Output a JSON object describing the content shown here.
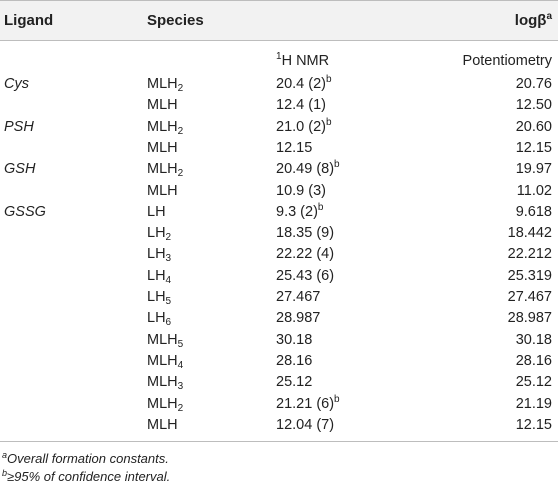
{
  "headers": {
    "ligand": "Ligand",
    "species": "Species",
    "logbeta": "logβ",
    "logbeta_sup": "a"
  },
  "subheaders": {
    "nmr_sup": "1",
    "nmr": "H NMR",
    "potentiometry": "Potentiometry"
  },
  "rows": [
    {
      "ligand": "Cys",
      "sp": "MLH",
      "sub": "2",
      "nmr": "20.4 (2)",
      "nmr_sup": "b",
      "pot": "20.76"
    },
    {
      "ligand": "",
      "sp": "MLH",
      "sub": "",
      "nmr": "12.4 (1)",
      "nmr_sup": "",
      "pot": "12.50"
    },
    {
      "ligand": "PSH",
      "sp": "MLH",
      "sub": "2",
      "nmr": "21.0 (2)",
      "nmr_sup": "b",
      "pot": "20.60"
    },
    {
      "ligand": "",
      "sp": "MLH",
      "sub": "",
      "nmr": "12.15",
      "nmr_sup": "",
      "pot": "12.15"
    },
    {
      "ligand": "GSH",
      "sp": "MLH",
      "sub": "2",
      "nmr": "20.49 (8)",
      "nmr_sup": "b",
      "pot": "19.97"
    },
    {
      "ligand": "",
      "sp": "MLH",
      "sub": "",
      "nmr": "10.9 (3)",
      "nmr_sup": "",
      "pot": "11.02"
    },
    {
      "ligand": "GSSG",
      "sp": "LH",
      "sub": "",
      "nmr": "9.3 (2)",
      "nmr_sup": "b",
      "pot": "9.618"
    },
    {
      "ligand": "",
      "sp": "LH",
      "sub": "2",
      "nmr": "18.35 (9)",
      "nmr_sup": "",
      "pot": "18.442"
    },
    {
      "ligand": "",
      "sp": "LH",
      "sub": "3",
      "nmr": "22.22 (4)",
      "nmr_sup": "",
      "pot": "22.212"
    },
    {
      "ligand": "",
      "sp": "LH",
      "sub": "4",
      "nmr": "25.43 (6)",
      "nmr_sup": "",
      "pot": "25.319"
    },
    {
      "ligand": "",
      "sp": "LH",
      "sub": "5",
      "nmr": "27.467",
      "nmr_sup": "",
      "pot": "27.467"
    },
    {
      "ligand": "",
      "sp": "LH",
      "sub": "6",
      "nmr": "28.987",
      "nmr_sup": "",
      "pot": "28.987"
    },
    {
      "ligand": "",
      "sp": "MLH",
      "sub": "5",
      "nmr": "30.18",
      "nmr_sup": "",
      "pot": "30.18"
    },
    {
      "ligand": "",
      "sp": "MLH",
      "sub": "4",
      "nmr": "28.16",
      "nmr_sup": "",
      "pot": "28.16"
    },
    {
      "ligand": "",
      "sp": "MLH",
      "sub": "3",
      "nmr": "25.12",
      "nmr_sup": "",
      "pot": "25.12"
    },
    {
      "ligand": "",
      "sp": "MLH",
      "sub": "2",
      "nmr": "21.21 (6)",
      "nmr_sup": "b",
      "pot": "21.19"
    },
    {
      "ligand": "",
      "sp": "MLH",
      "sub": "",
      "nmr": "12.04 (7)",
      "nmr_sup": "",
      "pot": "12.15"
    }
  ],
  "footnotes": [
    {
      "mark": "a",
      "text": "Overall formation constants."
    },
    {
      "mark": "b",
      "text": "≥95% of confidence interval."
    }
  ]
}
